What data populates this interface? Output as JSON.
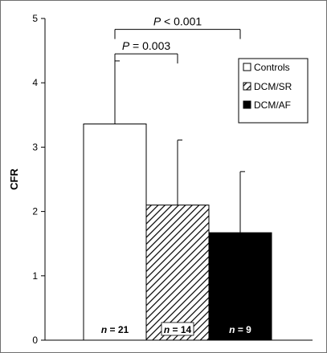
{
  "chart_data": {
    "type": "bar",
    "ylabel": "CFR",
    "xlabel": "",
    "title": "",
    "ylim": [
      0,
      5
    ],
    "yticks": [
      "0",
      "1",
      "2",
      "3",
      "4",
      "5"
    ],
    "categories": [
      "Controls",
      "DCM/SR",
      "DCM/AF"
    ],
    "values": [
      3.36,
      2.1,
      1.67
    ],
    "errors": [
      0.98,
      1.01,
      0.95
    ],
    "n_labels": [
      "n = 21",
      "n = 14",
      "n = 9"
    ],
    "fills": [
      "#ffffff",
      "hatch",
      "#000000"
    ],
    "legend": {
      "position": "right",
      "entries": [
        "Controls",
        "DCM/SR",
        "DCM/AF"
      ]
    },
    "annotations": [
      {
        "text": "P < 0.001",
        "from": 0,
        "to": 2,
        "y": 4.83
      },
      {
        "text": "P = 0.003",
        "from": 0,
        "to": 1,
        "y": 4.45
      }
    ]
  }
}
